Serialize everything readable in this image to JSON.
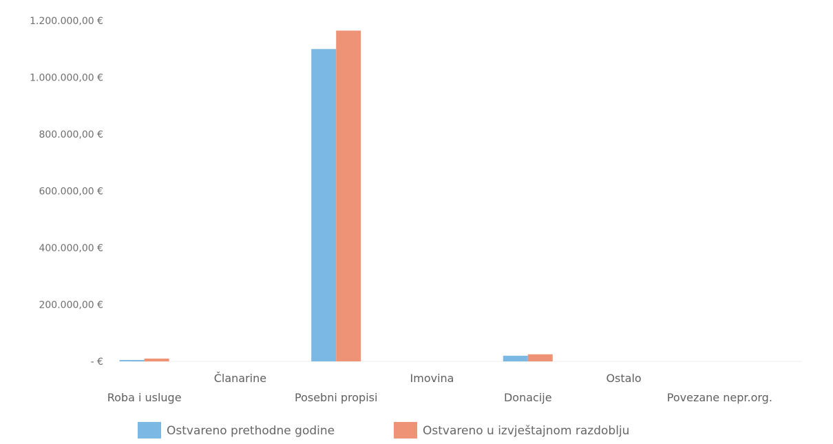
{
  "chart_data": {
    "type": "bar",
    "title": "",
    "xlabel": "",
    "ylabel": "",
    "categories": [
      "Roba i usluge",
      "Članarine",
      "Posebni propisi",
      "Imovina",
      "Donacije",
      "Ostalo",
      "Povezane nepr.org."
    ],
    "series": [
      {
        "name": "Ostvareno prethodne godine",
        "color": "#7bb8e3",
        "values": [
          5000,
          0,
          1100000,
          0,
          20000,
          0,
          0
        ]
      },
      {
        "name": "Ostvareno u izvještajnom razdoblju",
        "color": "#ef9377",
        "values": [
          10000,
          0,
          1165000,
          0,
          25000,
          0,
          0
        ]
      }
    ],
    "ylim": [
      0,
      1200000
    ],
    "yticks": [
      {
        "value": 0,
        "label": "-   €"
      },
      {
        "value": 200000,
        "label": "200.000,00 €"
      },
      {
        "value": 400000,
        "label": "400.000,00 €"
      },
      {
        "value": 600000,
        "label": "600.000,00 €"
      },
      {
        "value": 800000,
        "label": "800.000,00 €"
      },
      {
        "value": 1000000,
        "label": "1.000.000,00 €"
      },
      {
        "value": 1200000,
        "label": "1.200.000,00 €"
      }
    ],
    "grid": false,
    "legend_position": "bottom"
  }
}
